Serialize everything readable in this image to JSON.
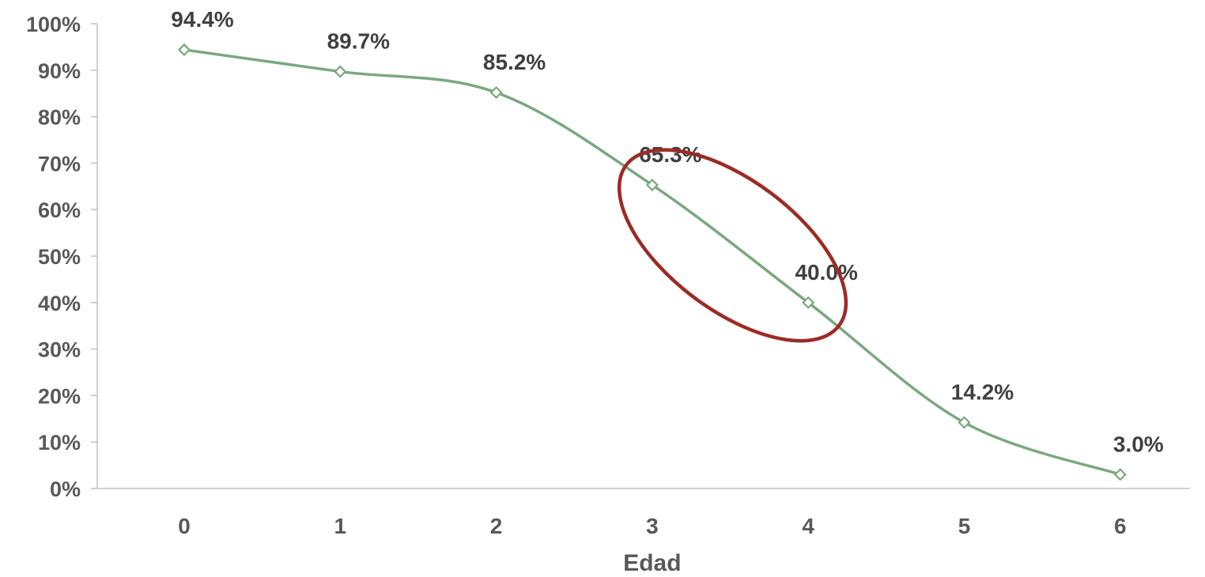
{
  "chart_data": {
    "type": "line",
    "title": "",
    "xlabel": "Edad",
    "ylabel": "",
    "categories": [
      "0",
      "1",
      "2",
      "3",
      "4",
      "5",
      "6"
    ],
    "series": [
      {
        "values": [
          94.4,
          89.7,
          85.2,
          65.3,
          40.0,
          14.2,
          3.0
        ],
        "labels": [
          "94.4%",
          "89.7%",
          "85.2%",
          "65.3%",
          "40.0%",
          "14.2%",
          "3.0%"
        ],
        "color": "#7aa87e",
        "marker": "diamond",
        "smooth": true
      }
    ],
    "ylim": [
      0,
      100
    ],
    "y_ticks": [
      "0%",
      "10%",
      "20%",
      "30%",
      "40%",
      "50%",
      "60%",
      "70%",
      "80%",
      "90%",
      "100%"
    ],
    "grid": false,
    "legend": "none",
    "annotation": {
      "shape": "ellipse",
      "color": "#9b2c26",
      "encloses_categories": [
        "3",
        "4"
      ]
    },
    "colors": {
      "tick_text": "#595959",
      "data_label_text": "#404040",
      "axis_line": "#c0c0c0"
    }
  }
}
